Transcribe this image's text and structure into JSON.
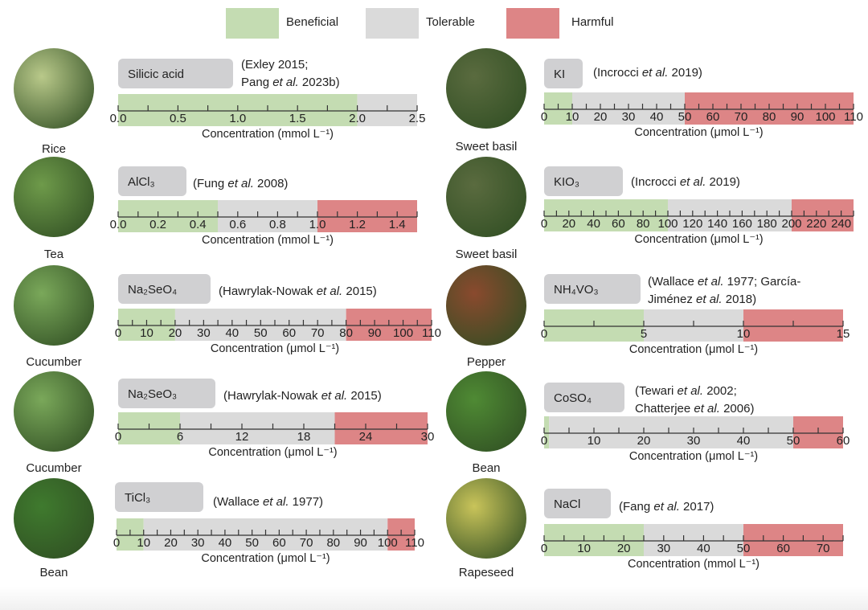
{
  "legend": [
    {
      "label": "Beneficial",
      "color": "#c4dcb2"
    },
    {
      "label": "Tolerable",
      "color": "#dadada"
    },
    {
      "label": "Harmful",
      "color": "#dd8586"
    }
  ],
  "chart_data": [
    {
      "type": "range-bar",
      "plant": "Rice",
      "compound": "Silicic acid",
      "citation": "(Exley 2015;\nPang et al. 2023b)",
      "xlabel": "Concentration (mmol L⁻¹)",
      "xlim": [
        0,
        2.5
      ],
      "ticks": [
        "0.0",
        "0.5",
        "1.0",
        "1.5",
        "2.0",
        "2.5"
      ],
      "minor_step": 0.25,
      "beneficial": [
        0,
        2.0
      ],
      "tolerable": [
        2.0,
        2.5
      ],
      "harmful": null
    },
    {
      "type": "range-bar",
      "plant": "Tea",
      "compound": "AlCl₃",
      "citation": "(Fung et al. 2008)",
      "xlabel": "Concentration (mmol L⁻¹)",
      "xlim": [
        0,
        1.5
      ],
      "ticks": [
        "0.0",
        "0.2",
        "0.4",
        "0.6",
        "0.8",
        "1.0",
        "1.2",
        "1.4"
      ],
      "minor_step": 0.1,
      "beneficial": [
        0,
        0.5
      ],
      "tolerable": [
        0.5,
        1.0
      ],
      "harmful": [
        1.0,
        1.5
      ]
    },
    {
      "type": "range-bar",
      "plant": "Cucumber",
      "compound": "Na₂SeO₄",
      "citation": "(Hawrylak-Nowak et al. 2015)",
      "xlabel": "Concentration (μmol L⁻¹)",
      "xlim": [
        0,
        110
      ],
      "ticks": [
        "0",
        "10",
        "20",
        "30",
        "40",
        "50",
        "60",
        "70",
        "80",
        "90",
        "100",
        "110"
      ],
      "minor_step": 5,
      "beneficial": [
        0,
        20
      ],
      "tolerable": [
        20,
        80
      ],
      "harmful": [
        80,
        110
      ]
    },
    {
      "type": "range-bar",
      "plant": "Cucumber",
      "compound": "Na₂SeO₃",
      "citation": "(Hawrylak-Nowak et al. 2015)",
      "xlabel": "Concentration (μmol L⁻¹)",
      "xlim": [
        0,
        30
      ],
      "ticks": [
        "0",
        "6",
        "12",
        "18",
        "24",
        "30"
      ],
      "minor_step": 3,
      "beneficial": [
        0,
        6
      ],
      "tolerable": [
        6,
        21
      ],
      "harmful": [
        21,
        30
      ]
    },
    {
      "type": "range-bar",
      "plant": "Bean",
      "compound": "TiCl₃",
      "citation": "(Wallace et al. 1977)",
      "xlabel": "Concentration (μmol L⁻¹)",
      "xlim": [
        0,
        110
      ],
      "ticks": [
        "0",
        "10",
        "20",
        "30",
        "40",
        "50",
        "60",
        "70",
        "80",
        "90",
        "100",
        "110"
      ],
      "minor_step": 5,
      "beneficial": [
        0,
        10
      ],
      "tolerable": [
        10,
        100
      ],
      "harmful": [
        100,
        110
      ]
    },
    {
      "type": "range-bar",
      "plant": "Sweet basil",
      "compound": "KI",
      "citation": "(Incrocci et al. 2019)",
      "xlabel": "Concentration (μmol L⁻¹)",
      "xlim": [
        0,
        110
      ],
      "ticks": [
        "0",
        "10",
        "20",
        "30",
        "40",
        "50",
        "60",
        "70",
        "80",
        "90",
        "100",
        "110"
      ],
      "minor_step": 5,
      "beneficial": [
        0,
        10
      ],
      "tolerable": [
        10,
        50
      ],
      "harmful": [
        50,
        110
      ]
    },
    {
      "type": "range-bar",
      "plant": "Sweet basil",
      "compound": "KIO₃",
      "citation": "(Incrocci et al. 2019)",
      "xlabel": "Concentration (μmol L⁻¹)",
      "xlim": [
        0,
        250
      ],
      "ticks": [
        "0",
        "20",
        "40",
        "60",
        "80",
        "100",
        "120",
        "140",
        "160",
        "180",
        "200",
        "220",
        "240"
      ],
      "minor_step": 10,
      "beneficial": [
        0,
        100
      ],
      "tolerable": [
        100,
        200
      ],
      "harmful": [
        200,
        250
      ]
    },
    {
      "type": "range-bar",
      "plant": "Pepper",
      "compound": "NH₄VO₃",
      "citation": "(Wallace et al. 1977; García-\nJiménez et al. 2018)",
      "xlabel": "Concentration (μmol L⁻¹)",
      "xlim": [
        0,
        15
      ],
      "ticks": [
        "0",
        "5",
        "10",
        "15"
      ],
      "minor_step": 2.5,
      "beneficial": [
        0,
        5
      ],
      "tolerable": [
        5,
        10
      ],
      "harmful": [
        10,
        15
      ]
    },
    {
      "type": "range-bar",
      "plant": "Bean",
      "compound": "CoSO₄",
      "citation": "(Tewari et al. 2002;\nChatterjee et al. 2006)",
      "xlabel": "Concentration (μmol L⁻¹)",
      "xlim": [
        0,
        60
      ],
      "ticks": [
        "0",
        "10",
        "20",
        "30",
        "40",
        "50",
        "60"
      ],
      "minor_step": 5,
      "beneficial": [
        0,
        1
      ],
      "tolerable": [
        1,
        50
      ],
      "harmful": [
        50,
        60
      ]
    },
    {
      "type": "range-bar",
      "plant": "Rapeseed",
      "compound": "NaCl",
      "citation": "(Fang et al. 2017)",
      "xlabel": "Concentration (mmol L⁻¹)",
      "xlim": [
        0,
        75
      ],
      "ticks": [
        "0",
        "10",
        "20",
        "30",
        "40",
        "50",
        "60",
        "70"
      ],
      "minor_step": 5,
      "beneficial": [
        0,
        25
      ],
      "tolerable": [
        25,
        50
      ],
      "harmful": [
        50,
        75
      ]
    }
  ]
}
